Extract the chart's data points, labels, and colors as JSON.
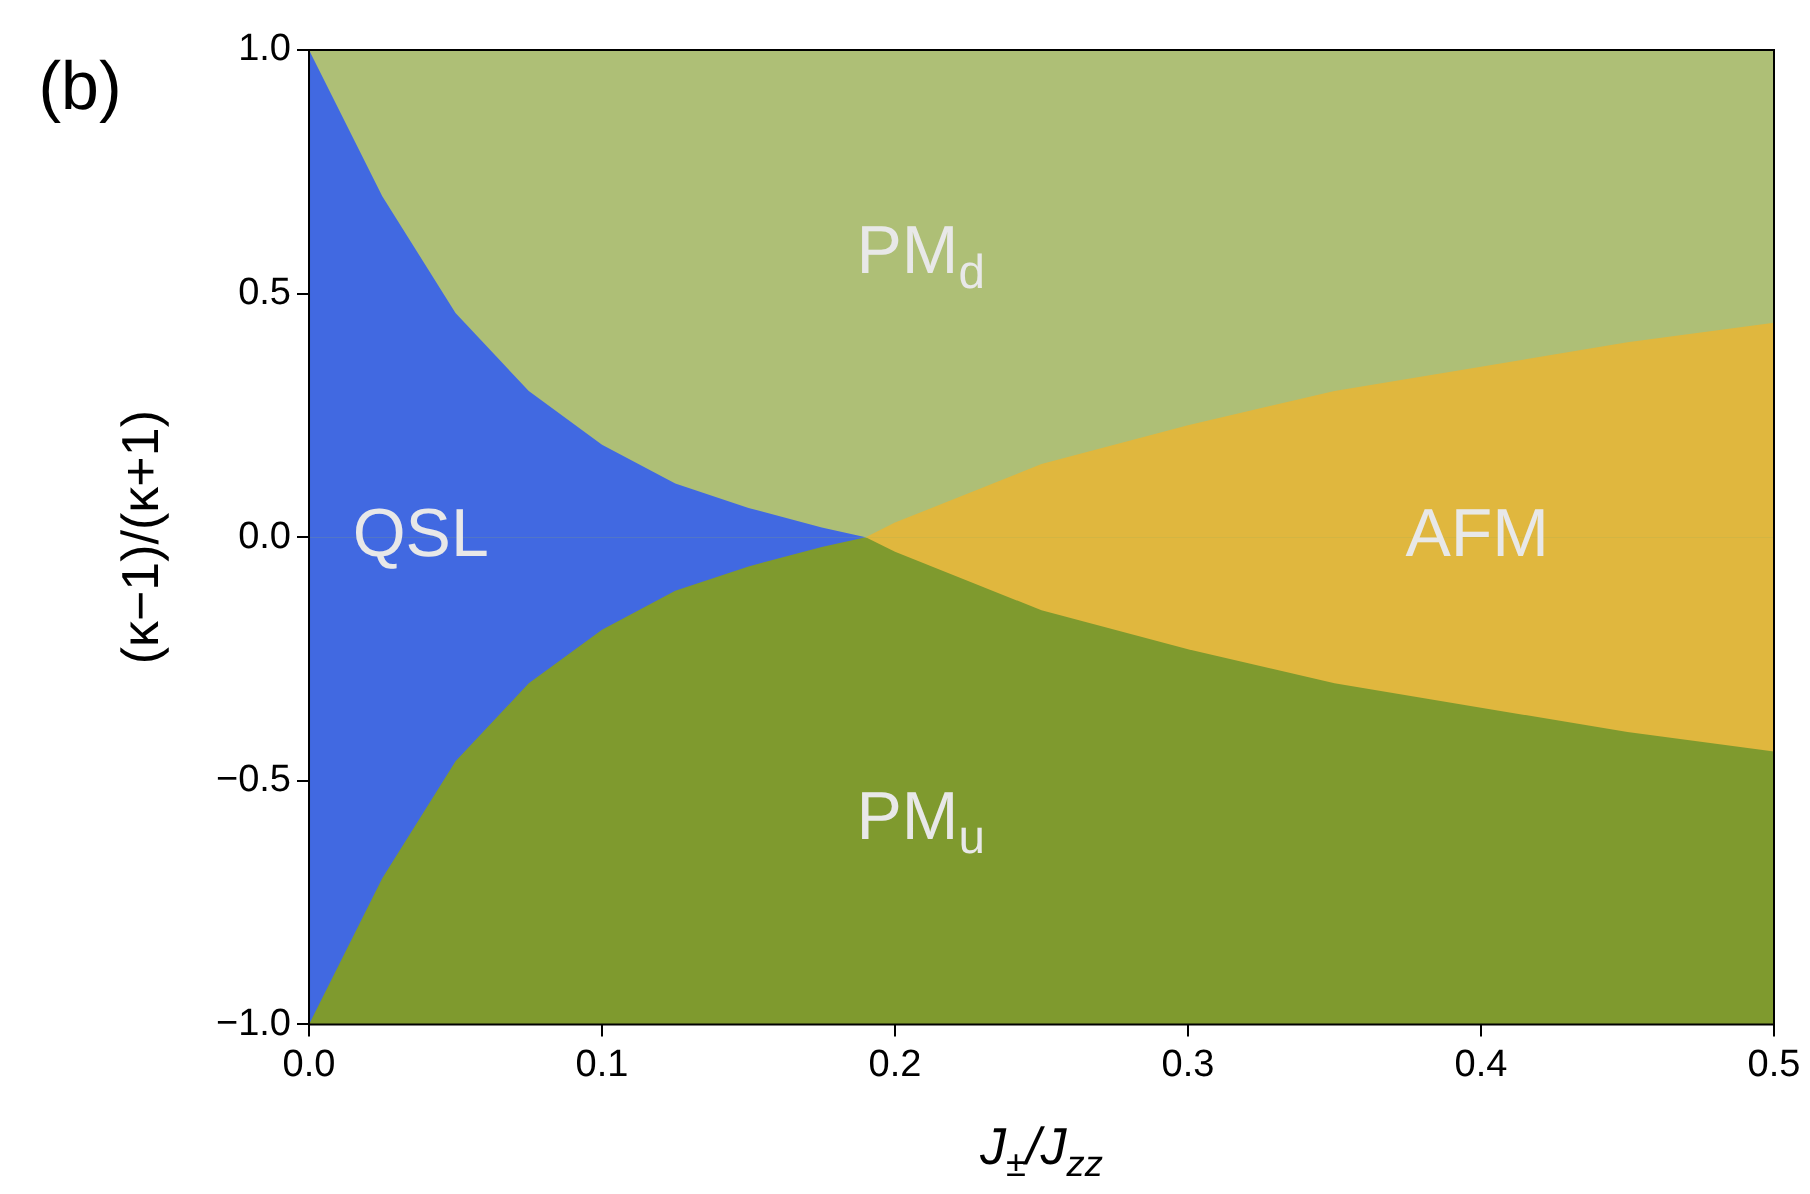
{
  "chart_data": {
    "type": "area",
    "title": "(b)",
    "xlabel": "J$_{±}$/J$_{zz}$",
    "ylabel": "(κ−1)/(κ+1)",
    "series": [
      {
        "name": "PM$_{d}$",
        "color": "#aebf76",
        "x": [
          0,
          0.025,
          0.05,
          0.075,
          0.1,
          0.125,
          0.15,
          0.175,
          0.19,
          0.2,
          0.25,
          0.3,
          0.35,
          0.4,
          0.45,
          0.5
        ],
        "values": [
          1,
          1,
          1,
          1,
          1,
          1,
          1,
          1,
          1,
          1,
          1,
          1,
          1,
          1,
          1,
          1
        ]
      },
      {
        "name": "PM$_{u}$",
        "color": "#7f9a2e",
        "x": [
          0,
          0.025,
          0.05,
          0.075,
          0.1,
          0.125,
          0.15,
          0.175,
          0.19,
          0.2,
          0.25,
          0.3,
          0.35,
          0.4,
          0.45,
          0.5
        ],
        "values": [
          -1,
          -1,
          -1,
          -1,
          -1,
          -1,
          -1,
          -1,
          -1,
          -1,
          -1,
          -1,
          -1,
          -1,
          -1,
          -1
        ]
      },
      {
        "name": "QSL",
        "color": "#4169e1",
        "x": [
          0,
          0.025,
          0.05,
          0.075,
          0.1,
          0.125,
          0.15,
          0.175,
          0.19
        ],
        "values": [
          1,
          0.7,
          0.46,
          0.3,
          0.19,
          0.11,
          0.06,
          0.02,
          0
        ]
      },
      {
        "color": "#4169e1",
        "x": [
          0,
          0.025,
          0.05,
          0.075,
          0.1,
          0.125,
          0.15,
          0.175,
          0.19
        ],
        "values": [
          -1,
          -0.7,
          -0.46,
          -0.3,
          -0.19,
          -0.11,
          -0.06,
          -0.02,
          0
        ]
      },
      {
        "name": "AFM",
        "color": "#e0b73e",
        "x": [
          0.19,
          0.2,
          0.25,
          0.3,
          0.35,
          0.4,
          0.45,
          0.5
        ],
        "values": [
          0,
          0.03,
          0.15,
          0.23,
          0.3,
          0.35,
          0.4,
          0.44
        ]
      },
      {
        "color": "#e0b73e",
        "x": [
          0.19,
          0.2,
          0.25,
          0.3,
          0.35,
          0.4,
          0.45,
          0.5
        ],
        "values": [
          0,
          -0.03,
          -0.15,
          -0.23,
          -0.3,
          -0.35,
          -0.4,
          -0.44
        ]
      }
    ],
    "xlim": [
      0,
      0.5
    ],
    "ylim": [
      -1,
      1
    ],
    "xticks": [
      {
        "value": 0,
        "label": "0.0"
      },
      0.1,
      0.2,
      0.3,
      0.4,
      0.5
    ],
    "yticks": [
      {
        "value": -1,
        "label": "−1.0"
      },
      {
        "value": -0.5,
        "label": "−0.5"
      },
      {
        "value": 0,
        "label": "0.0"
      },
      0.5,
      {
        "value": 1,
        "label": "1.0"
      }
    ],
    "grid": false,
    "legend": false
  }
}
